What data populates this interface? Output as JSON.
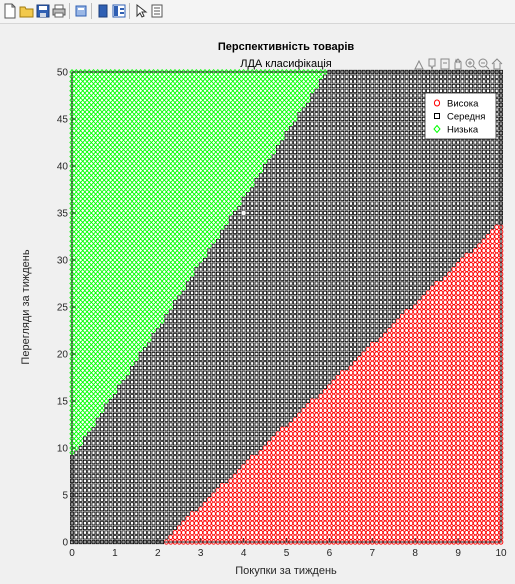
{
  "toolbar": {
    "icons": [
      "new-figure-icon",
      "open-file-icon",
      "save-icon",
      "print-icon",
      "print-preview-icon",
      "hide-plot-tools-icon",
      "show-plot-tools-icon",
      "edit-plot-icon",
      "property-inspector-icon"
    ]
  },
  "axes_toolbar": {
    "icons": [
      "brush-icon",
      "data-tips-icon",
      "export-icon",
      "pan-icon",
      "zoom-in-icon",
      "zoom-out-icon",
      "home-icon"
    ]
  },
  "colors": {
    "high": "#ff0000",
    "medium": "#000000",
    "low": "#00ff00",
    "axes_bg": "#ffffff",
    "figure_bg": "#f0f0f0"
  },
  "chart_data": {
    "type": "scatter",
    "title": "Перспективність товарів",
    "subtitle": "ЛДА класифікація",
    "xlabel": "Покупки за тиждень",
    "ylabel": "Перегляди за тиждень",
    "xlim": [
      0,
      10
    ],
    "ylim": [
      0,
      50
    ],
    "xticks": [
      0,
      1,
      2,
      3,
      4,
      5,
      6,
      7,
      8,
      9,
      10
    ],
    "yticks": [
      0,
      5,
      10,
      15,
      20,
      25,
      30,
      35,
      40,
      45,
      50
    ],
    "grid": false,
    "legend_position": "top-right",
    "grid_points": {
      "x_start": 0,
      "x_end": 10,
      "x_step": 0.1,
      "y_start": 0,
      "y_end": 50,
      "y_step": 0.5
    },
    "series": [
      {
        "name": "Висока",
        "marker": "circle",
        "color": "#ff0000",
        "region": "y < 4.3*(x - 2.1)"
      },
      {
        "name": "Середня",
        "marker": "square",
        "color": "#000000",
        "region": "between"
      },
      {
        "name": "Низька",
        "marker": "diamond",
        "color": "#00ff00",
        "region": "y > 9 + 6.9*x"
      }
    ],
    "boundaries": [
      {
        "between": [
          "Висока",
          "Середня"
        ],
        "slope": 4.3,
        "x_intercept": 2.1
      },
      {
        "between": [
          "Середня",
          "Низька"
        ],
        "slope": 6.9,
        "y_intercept": 9
      }
    ],
    "annotation": {
      "x": 4,
      "y": 35,
      "marker": "circle",
      "color": "#808080"
    }
  }
}
